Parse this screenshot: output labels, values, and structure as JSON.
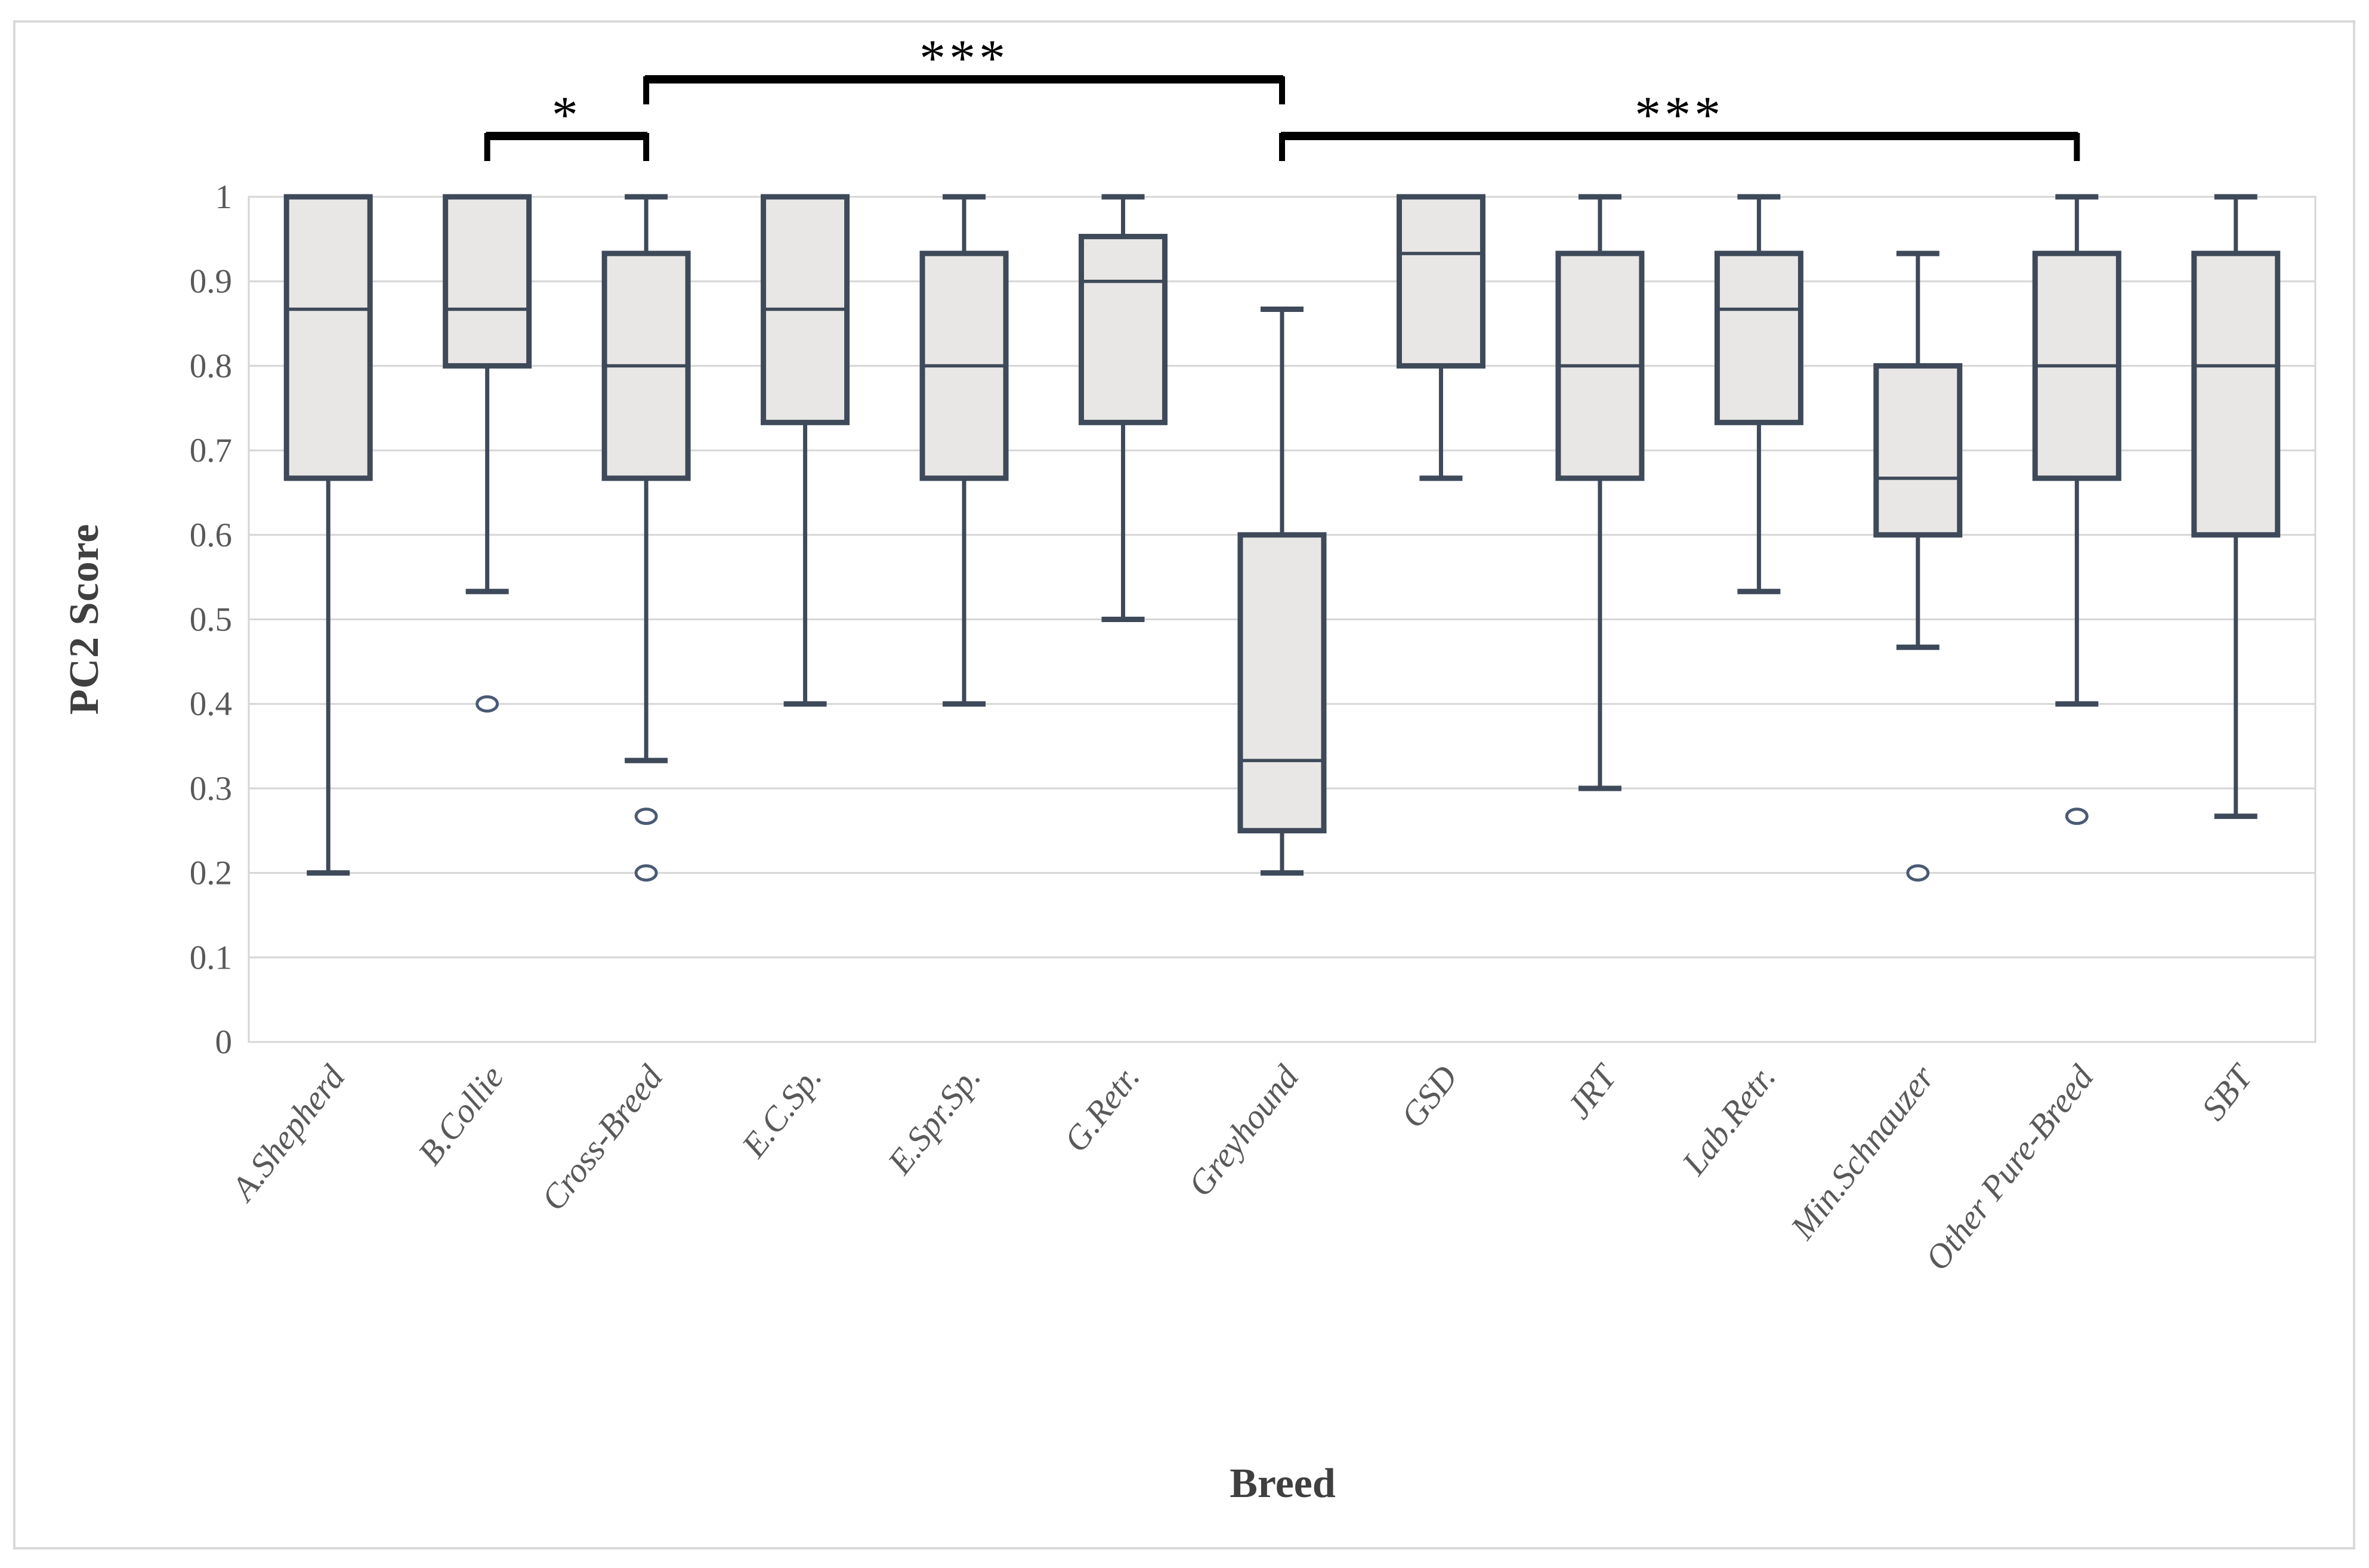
{
  "chart_data": {
    "type": "box",
    "title": "",
    "xlabel": "Breed",
    "ylabel": "PC2 Score",
    "ylim": [
      0,
      1
    ],
    "ytick_step": 0.1,
    "ytick_labels": [
      "0",
      "0.1",
      "0.2",
      "0.3",
      "0.4",
      "0.5",
      "0.6",
      "0.7",
      "0.8",
      "0.9",
      "1"
    ],
    "grid": true,
    "legend": "none",
    "categories": [
      "A.Shepherd",
      "B.Collie",
      "Cross-Breed",
      "E.C.Sp.",
      "E.Spr.Sp.",
      "G.Retr.",
      "Greyhound",
      "GSD",
      "JRT",
      "Lab.Retr.",
      "Min.Schnauzer",
      "Other Pure-Breed",
      "SBT"
    ],
    "boxes": [
      {
        "label": "A.Shepherd",
        "whisker_low": 0.2,
        "q1": 0.667,
        "median": 0.867,
        "q3": 1.0,
        "whisker_high": 1.0,
        "outliers": []
      },
      {
        "label": "B.Collie",
        "whisker_low": 0.533,
        "q1": 0.8,
        "median": 0.867,
        "q3": 1.0,
        "whisker_high": 1.0,
        "outliers": [
          0.4
        ]
      },
      {
        "label": "Cross-Breed",
        "whisker_low": 0.333,
        "q1": 0.667,
        "median": 0.8,
        "q3": 0.933,
        "whisker_high": 1.0,
        "outliers": [
          0.267,
          0.2
        ]
      },
      {
        "label": "E.C.Sp.",
        "whisker_low": 0.4,
        "q1": 0.733,
        "median": 0.867,
        "q3": 1.0,
        "whisker_high": 1.0,
        "outliers": []
      },
      {
        "label": "E.Spr.Sp.",
        "whisker_low": 0.4,
        "q1": 0.667,
        "median": 0.8,
        "q3": 0.933,
        "whisker_high": 1.0,
        "outliers": []
      },
      {
        "label": "G.Retr.",
        "whisker_low": 0.5,
        "q1": 0.733,
        "median": 0.9,
        "q3": 0.953,
        "whisker_high": 1.0,
        "outliers": []
      },
      {
        "label": "Greyhound",
        "whisker_low": 0.2,
        "q1": 0.25,
        "median": 0.333,
        "q3": 0.6,
        "whisker_high": 0.867,
        "outliers": []
      },
      {
        "label": "GSD",
        "whisker_low": 0.667,
        "q1": 0.8,
        "median": 0.933,
        "q3": 1.0,
        "whisker_high": 1.0,
        "outliers": []
      },
      {
        "label": "JRT",
        "whisker_low": 0.3,
        "q1": 0.667,
        "median": 0.8,
        "q3": 0.933,
        "whisker_high": 1.0,
        "outliers": []
      },
      {
        "label": "Lab.Retr.",
        "whisker_low": 0.533,
        "q1": 0.733,
        "median": 0.867,
        "q3": 0.933,
        "whisker_high": 1.0,
        "outliers": []
      },
      {
        "label": "Min.Schnauzer",
        "whisker_low": 0.467,
        "q1": 0.6,
        "median": 0.667,
        "q3": 0.8,
        "whisker_high": 0.933,
        "outliers": [
          0.2
        ]
      },
      {
        "label": "Other Pure-Breed",
        "whisker_low": 0.4,
        "q1": 0.667,
        "median": 0.8,
        "q3": 0.933,
        "whisker_high": 1.0,
        "outliers": [
          0.267
        ]
      },
      {
        "label": "SBT",
        "whisker_low": 0.267,
        "q1": 0.6,
        "median": 0.8,
        "q3": 0.933,
        "whisker_high": 1.0,
        "outliers": []
      }
    ],
    "significance_brackets": [
      {
        "from": "B.Collie",
        "to": "Cross-Breed",
        "label": "*",
        "row": "low"
      },
      {
        "from": "Cross-Breed",
        "to": "Greyhound",
        "label": "***",
        "row": "high"
      },
      {
        "from": "Greyhound",
        "to": "Other Pure-Breed",
        "label": "***",
        "row": "low"
      }
    ],
    "colors": {
      "background": "#ffffff",
      "frame": "#d9d9d9",
      "plot_border": "#d6d6d6",
      "gridline": "#d6d6d6",
      "box_fill": "#e9e7e5",
      "box_stroke": "#3e4959",
      "median": "#3e4959",
      "whisker": "#3e4959",
      "outlier_stroke": "#4a5a74",
      "tick_label": "#595959",
      "axis_title": "#3f3f3f",
      "bracket": "#000000"
    }
  }
}
